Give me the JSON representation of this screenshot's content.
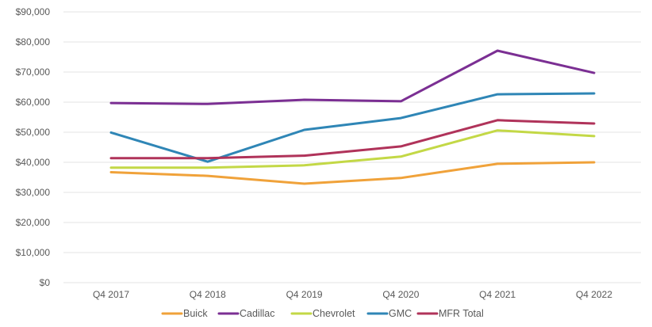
{
  "chart_data": {
    "type": "line",
    "categories": [
      "Q4 2017",
      "Q4 2018",
      "Q4 2019",
      "Q4 2020",
      "Q4 2021",
      "Q4 2022"
    ],
    "series": [
      {
        "name": "Buick",
        "color": "#f0a23a",
        "values": [
          36700,
          35500,
          32900,
          34800,
          39500,
          40000
        ]
      },
      {
        "name": "Cadillac",
        "color": "#7b2f93",
        "values": [
          59700,
          59400,
          60800,
          60300,
          77100,
          69700
        ]
      },
      {
        "name": "Chevrolet",
        "color": "#c3d846",
        "values": [
          38200,
          38200,
          39000,
          41900,
          50600,
          48700
        ]
      },
      {
        "name": "GMC",
        "color": "#2f86b6",
        "values": [
          49900,
          40200,
          50800,
          54700,
          62600,
          62900
        ]
      },
      {
        "name": "MFR Total",
        "color": "#b0335a",
        "values": [
          41400,
          41400,
          42200,
          45300,
          54000,
          52900
        ]
      }
    ],
    "yticks": [
      "$0",
      "$10,000",
      "$20,000",
      "$30,000",
      "$40,000",
      "$50,000",
      "$60,000",
      "$70,000",
      "$80,000",
      "$90,000"
    ],
    "ylim": [
      0,
      90000
    ],
    "grid": true,
    "legend_position": "bottom"
  }
}
